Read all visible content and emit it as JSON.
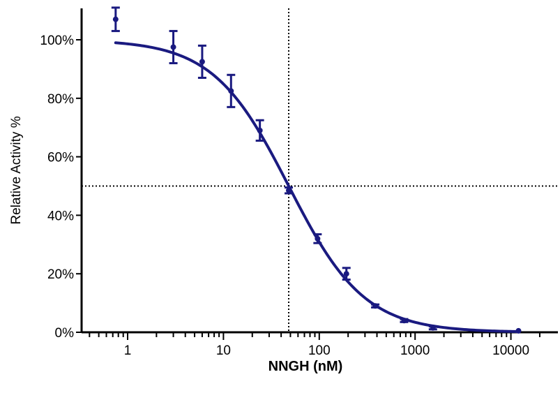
{
  "chart_data": {
    "type": "scatter",
    "title": "",
    "xlabel": "NNGH (nM)",
    "ylabel": "Relative Activity %",
    "x_scale": "log",
    "xlim": [
      0.3,
      25000
    ],
    "ylim": [
      0,
      110
    ],
    "x_ticks": [
      1,
      10,
      100,
      1000,
      10000
    ],
    "x_tick_labels": [
      "1",
      "10",
      "100",
      "1000",
      "10000"
    ],
    "y_ticks": [
      0,
      20,
      40,
      60,
      80,
      100
    ],
    "y_tick_labels": [
      "0%",
      "20%",
      "40%",
      "60%",
      "80%",
      "100%"
    ],
    "grid": false,
    "legend": "none",
    "colors": {
      "series": "#1a1a80",
      "reference": "#000000"
    },
    "series": [
      {
        "x": [
          0.75,
          3,
          6,
          12,
          24,
          48,
          96,
          192,
          384,
          768,
          1536,
          12000
        ],
        "y": [
          107,
          97.5,
          92.5,
          82.5,
          69,
          48.5,
          32,
          20,
          9,
          4,
          1.5,
          0.5
        ],
        "err": [
          4,
          5.5,
          5.5,
          5.5,
          3.5,
          1,
          1.5,
          2,
          0.5,
          0.5,
          0.5,
          0
        ]
      }
    ],
    "fit_curve": {
      "model": "four-parameter logistic",
      "top": 100,
      "bottom": 0,
      "ic50": 48,
      "hill": 1.1
    },
    "reference_lines": {
      "x": 48,
      "y": 50
    }
  }
}
